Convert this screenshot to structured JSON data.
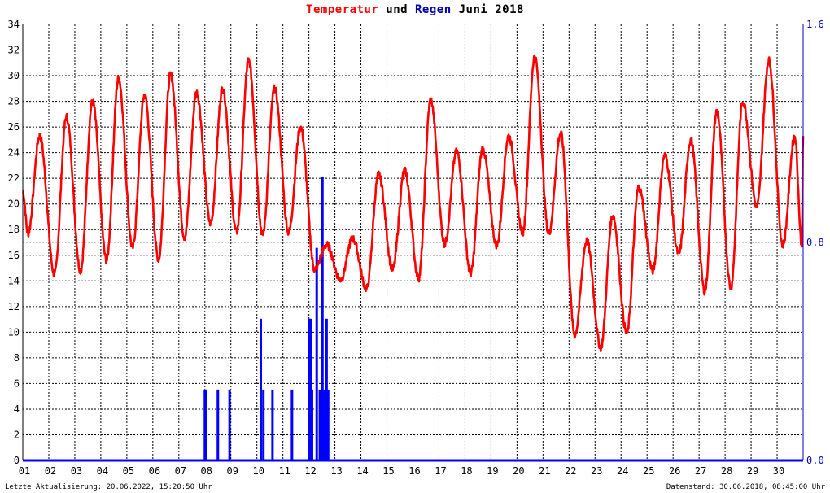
{
  "title": {
    "part1": "Temperatur",
    "part2": " und ",
    "part3": "Regen",
    "part4": " Juni 2018"
  },
  "colors": {
    "temperature": "#ff0000",
    "rain": "#0000ff",
    "grid": "#000000",
    "background": "#ffffff"
  },
  "footer": {
    "left": "Letzte Aktualisierung: 20.06.2022, 15:20:50 Uhr",
    "right": "Datenstand: 30.06.2018, 08:45:00 Uhr"
  },
  "chart_data": {
    "type": "line",
    "x_ticks": [
      "01",
      "02",
      "03",
      "04",
      "05",
      "06",
      "07",
      "08",
      "09",
      "10",
      "11",
      "12",
      "13",
      "14",
      "15",
      "16",
      "17",
      "18",
      "19",
      "20",
      "21",
      "22",
      "23",
      "24",
      "25",
      "26",
      "27",
      "28",
      "29",
      "30"
    ],
    "xlim": [
      1,
      31
    ],
    "y_left": {
      "ticks": [
        0,
        2,
        4,
        6,
        8,
        10,
        12,
        14,
        16,
        18,
        20,
        22,
        24,
        26,
        28,
        30,
        32,
        34
      ],
      "ylim": [
        0,
        34
      ]
    },
    "y_right": {
      "ticks": [
        "0.0",
        "0.8",
        "1.6"
      ],
      "ylim": [
        0,
        1.6
      ]
    },
    "grid": true,
    "series": [
      {
        "name": "Temperatur",
        "axis": "left",
        "min_max": [
          [
            21,
            17.7,
            25.3
          ],
          [
            14.5,
            26.8
          ],
          [
            14.8,
            28
          ],
          [
            15.6,
            29.8
          ],
          [
            16.6,
            28.5
          ],
          [
            15.7,
            30.1
          ],
          [
            17.4,
            28.7
          ],
          [
            18.5,
            29
          ],
          [
            17.8,
            31.2
          ],
          [
            17.6,
            29
          ],
          [
            17.8,
            26
          ],
          [
            14.9,
            16.8
          ],
          [
            14.1,
            17.3
          ],
          [
            13.4,
            22.3
          ],
          [
            14.9,
            22.6
          ],
          [
            14.2,
            28.1
          ],
          [
            16.9,
            24.1
          ],
          [
            14.6,
            24.3
          ],
          [
            16.8,
            25.3
          ],
          [
            17.8,
            31.5
          ],
          [
            17.7,
            25.5
          ],
          [
            9.8,
            17.1
          ],
          [
            8.8,
            19.1
          ],
          [
            9.9,
            21.3
          ],
          [
            14.8,
            23.8
          ],
          [
            16.1,
            25
          ],
          [
            13.2,
            27.2
          ],
          [
            13.5,
            28
          ],
          [
            19.8,
            31.2
          ],
          [
            16.8,
            25.3
          ]
        ]
      },
      {
        "name": "Regen",
        "axis": "right",
        "bars": [
          {
            "x": 8.0,
            "v": 0.26
          },
          {
            "x": 8.05,
            "v": 0.26
          },
          {
            "x": 8.5,
            "v": 0.26
          },
          {
            "x": 8.95,
            "v": 0.26
          },
          {
            "x": 10.15,
            "v": 0.52
          },
          {
            "x": 10.25,
            "v": 0.26
          },
          {
            "x": 10.6,
            "v": 0.26
          },
          {
            "x": 11.35,
            "v": 0.26
          },
          {
            "x": 12.0,
            "v": 0.52
          },
          {
            "x": 12.07,
            "v": 0.52
          },
          {
            "x": 12.12,
            "v": 0.26
          },
          {
            "x": 12.3,
            "v": 0.78
          },
          {
            "x": 12.42,
            "v": 0.26
          },
          {
            "x": 12.52,
            "v": 1.04
          },
          {
            "x": 12.58,
            "v": 0.26
          },
          {
            "x": 12.68,
            "v": 0.52
          },
          {
            "x": 12.74,
            "v": 0.26
          }
        ]
      }
    ]
  }
}
